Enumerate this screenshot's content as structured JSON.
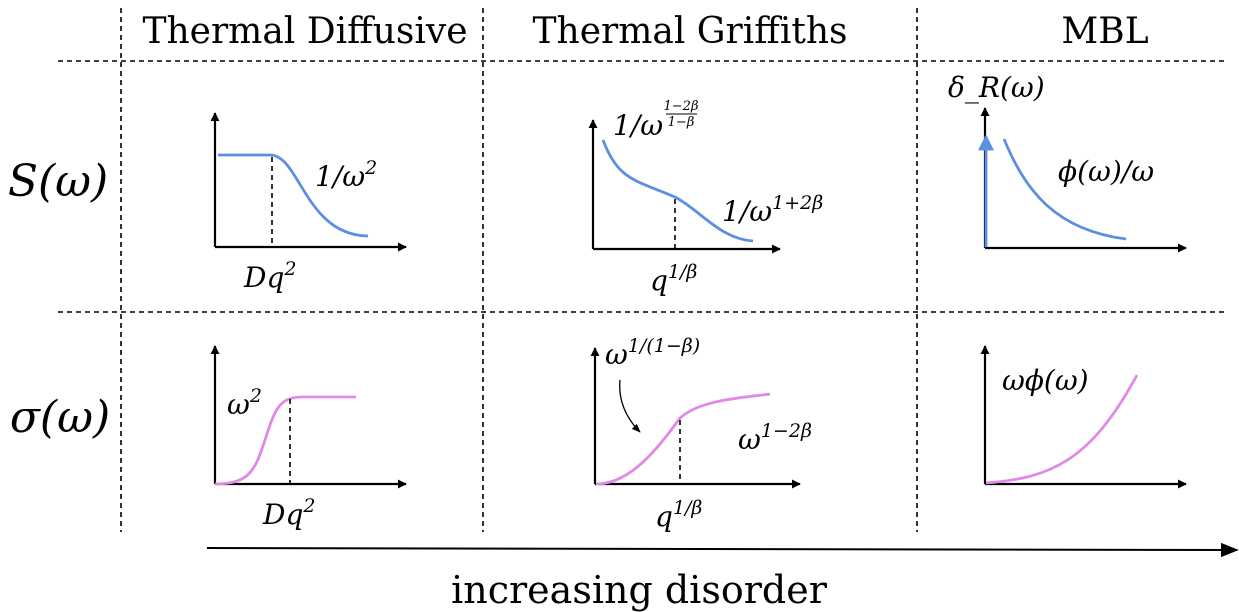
{
  "headers": {
    "col1": "Thermal Diffusive",
    "col2": "Thermal Griffiths",
    "col3": "MBL"
  },
  "rows": {
    "row1": "S(ω)",
    "row2": "σ(ω)"
  },
  "plots": {
    "s_diffusive": {
      "curve_label": "1/ω",
      "curve_label_sup": "2",
      "x_label": "Dq",
      "x_label_sup": "2"
    },
    "s_griffiths": {
      "curve_label_1": "1/ω",
      "curve_label_1_sup_num": "1−2β",
      "curve_label_1_sup_den": "1−β",
      "curve_label_2": "1/ω",
      "curve_label_2_sup": "1+2β",
      "x_label": "q",
      "x_label_sup": "1/β"
    },
    "s_mbl": {
      "y_label": "δ_R(ω)",
      "curve_label": "ϕ(ω)/ω"
    },
    "sigma_diffusive": {
      "curve_label": "ω",
      "curve_label_sup": "2",
      "x_label": "Dq",
      "x_label_sup": "2"
    },
    "sigma_griffiths": {
      "curve_label_1": "ω",
      "curve_label_1_sup": "1/(1−β)",
      "curve_label_2": "ω",
      "curve_label_2_sup": "1−2β",
      "x_label": "q",
      "x_label_sup": "1/β"
    },
    "sigma_mbl": {
      "curve_label": "ωϕ(ω)"
    }
  },
  "footer": {
    "label": "increasing disorder"
  },
  "colors": {
    "s_curve": "#5b8fe0",
    "sigma_curve": "#e08ae6"
  }
}
